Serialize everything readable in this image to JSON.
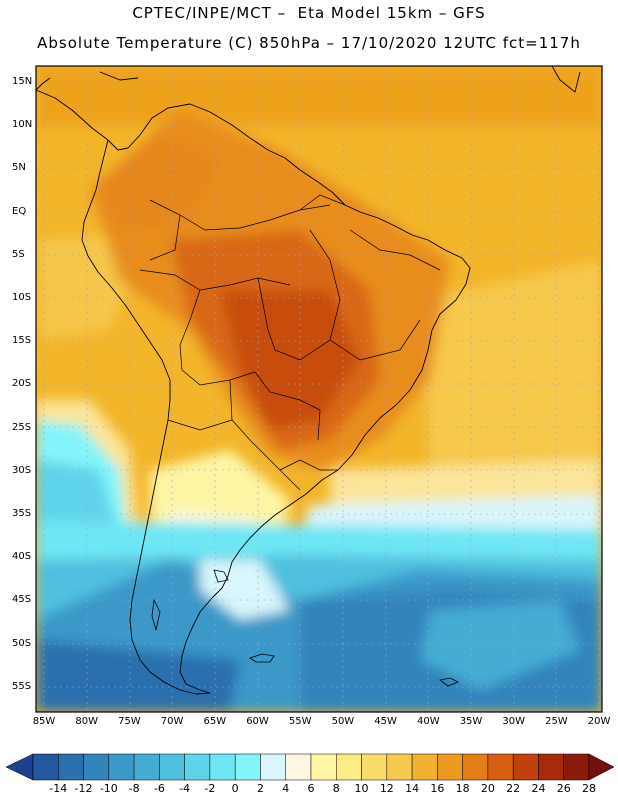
{
  "header": {
    "title_line1": "CPTEC/INPE/MCT –  Eta Model 15km – GFS",
    "title_line2": "Absolute Temperature (C) 850hPa – 17/10/2020 12UTC fct=117h"
  },
  "map": {
    "lat_labels": [
      "15N",
      "10N",
      "5N",
      "EQ",
      "5S",
      "10S",
      "15S",
      "20S",
      "25S",
      "30S",
      "35S",
      "40S",
      "45S",
      "50S",
      "55S"
    ],
    "lon_labels": [
      "85W",
      "80W",
      "75W",
      "70W",
      "65W",
      "60W",
      "55W",
      "50W",
      "45W",
      "40W",
      "35W",
      "30W",
      "25W",
      "20W"
    ]
  },
  "colorbar": {
    "labels": [
      "-14",
      "-12",
      "-10",
      "-8",
      "-6",
      "-4",
      "-2",
      "0",
      "2",
      "4",
      "6",
      "8",
      "10",
      "12",
      "14",
      "16",
      "18",
      "20",
      "22",
      "24",
      "26",
      "28"
    ],
    "colors": [
      "#1f3f8f",
      "#24589f",
      "#2a6fae",
      "#3384bb",
      "#3b98c8",
      "#45acd4",
      "#50c0df",
      "#5ed3ea",
      "#6ee6f4",
      "#84f4fb",
      "#d8f6fb",
      "#fdf7e2",
      "#fdf5a4",
      "#fcec85",
      "#f9dc6a",
      "#f5c94d",
      "#f1b232",
      "#ec9a22",
      "#e47e18",
      "#d85f12",
      "#c0410d",
      "#a82a0c",
      "#8a1a0c",
      "#721010"
    ]
  }
}
